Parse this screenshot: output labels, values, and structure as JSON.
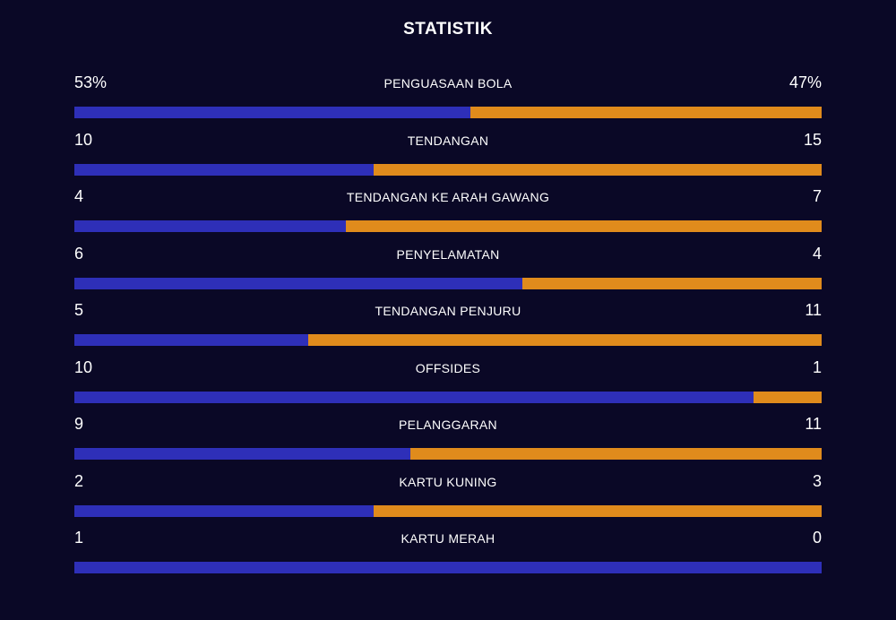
{
  "title": "STATISTIK",
  "colors": {
    "background": "#0a0826",
    "home": "#2e2fb8",
    "away": "#e08b1c",
    "text": "#ffffff"
  },
  "stats": [
    {
      "name": "PENGUASAAN BOLA",
      "home_label": "53%",
      "away_label": "47%",
      "home": 53,
      "away": 47
    },
    {
      "name": "TENDANGAN",
      "home_label": "10",
      "away_label": "15",
      "home": 10,
      "away": 15
    },
    {
      "name": "TENDANGAN KE ARAH GAWANG",
      "home_label": "4",
      "away_label": "7",
      "home": 4,
      "away": 7
    },
    {
      "name": "PENYELAMATAN",
      "home_label": "6",
      "away_label": "4",
      "home": 6,
      "away": 4
    },
    {
      "name": "TENDANGAN PENJURU",
      "home_label": "5",
      "away_label": "11",
      "home": 5,
      "away": 11
    },
    {
      "name": "OFFSIDES",
      "home_label": "10",
      "away_label": "1",
      "home": 10,
      "away": 1
    },
    {
      "name": "PELANGGARAN",
      "home_label": "9",
      "away_label": "11",
      "home": 9,
      "away": 11
    },
    {
      "name": "KARTU KUNING",
      "home_label": "2",
      "away_label": "3",
      "home": 2,
      "away": 3
    },
    {
      "name": "KARTU MERAH",
      "home_label": "1",
      "away_label": "0",
      "home": 1,
      "away": 0
    }
  ]
}
